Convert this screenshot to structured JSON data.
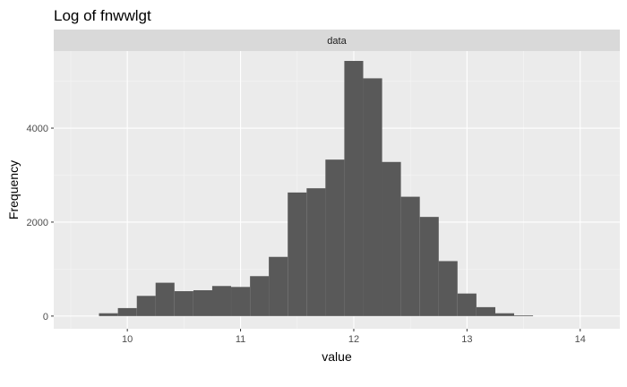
{
  "chart_data": {
    "type": "bar",
    "title": "Log of fnwwlgt",
    "facet_label": "data",
    "xlabel": "value",
    "ylabel": "Frequency",
    "xlim": [
      9.35,
      14.35
    ],
    "ylim": [
      -270,
      5640
    ],
    "x_ticks": [
      10,
      11,
      12,
      13,
      14
    ],
    "x_tick_labels": [
      "10",
      "11",
      "12",
      "13",
      "14"
    ],
    "y_ticks": [
      0,
      2000,
      4000
    ],
    "y_tick_labels": [
      "0",
      "2000",
      "4000"
    ],
    "bin_width": 0.1667,
    "bins": [
      {
        "x": 9.833,
        "count": 60
      },
      {
        "x": 10.0,
        "count": 170
      },
      {
        "x": 10.167,
        "count": 430
      },
      {
        "x": 10.333,
        "count": 710
      },
      {
        "x": 10.5,
        "count": 530
      },
      {
        "x": 10.667,
        "count": 550
      },
      {
        "x": 10.833,
        "count": 640
      },
      {
        "x": 11.0,
        "count": 620
      },
      {
        "x": 11.167,
        "count": 850
      },
      {
        "x": 11.333,
        "count": 1260
      },
      {
        "x": 11.5,
        "count": 2630
      },
      {
        "x": 11.667,
        "count": 2720
      },
      {
        "x": 11.833,
        "count": 3330
      },
      {
        "x": 12.0,
        "count": 5430
      },
      {
        "x": 12.167,
        "count": 5060
      },
      {
        "x": 12.333,
        "count": 3280
      },
      {
        "x": 12.5,
        "count": 2540
      },
      {
        "x": 12.667,
        "count": 2110
      },
      {
        "x": 12.833,
        "count": 1170
      },
      {
        "x": 13.0,
        "count": 480
      },
      {
        "x": 13.167,
        "count": 190
      },
      {
        "x": 13.333,
        "count": 60
      },
      {
        "x": 13.5,
        "count": 15
      }
    ],
    "grid": true,
    "colors": {
      "bar": "#595959",
      "panel_background": "#ebebeb",
      "grid_major": "#ffffff",
      "grid_minor": "#f5f5f5",
      "strip_background": "#d9d9d9"
    }
  }
}
